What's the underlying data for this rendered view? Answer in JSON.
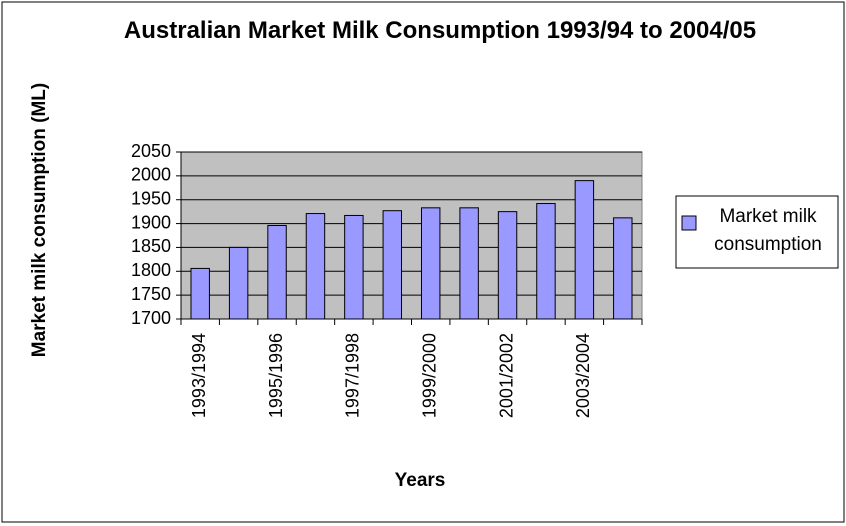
{
  "chart_data": {
    "type": "bar",
    "title": "Australian Market Milk Consumption 1993/94 to 2004/05",
    "y_label": "Market milk consumption (ML)",
    "x_label": "Years",
    "categories": [
      "1993/1994",
      null,
      "1995/1996",
      null,
      "1997/1998",
      null,
      "1999/2000",
      null,
      "2001/2002",
      null,
      "2003/2004",
      null
    ],
    "series": [
      {
        "name": "Market milk consumption",
        "color": "#9999ff",
        "values": [
          1806,
          1850,
          1896,
          1921,
          1917,
          1927,
          1933,
          1933,
          1925,
          1942,
          1990,
          1912
        ]
      }
    ],
    "ylim": [
      1700,
      2050
    ],
    "yticks": [
      1700,
      1750,
      1800,
      1850,
      1900,
      1950,
      2000,
      2050
    ],
    "grid": true,
    "legend": "right"
  }
}
